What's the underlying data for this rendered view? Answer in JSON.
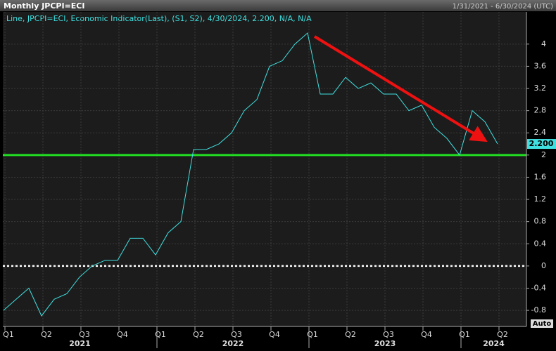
{
  "chart_data": {
    "type": "line",
    "title": "Monthly JPCPI=ECI",
    "date_range": "1/31/2021 - 6/30/2024 (UTC)",
    "legend_text": "Line, JPCPI=ECI, Economic Indicator(Last), (S1, S2), 4/30/2024, 2.200, N/A, N/A",
    "categories": [
      "Q1",
      null,
      null,
      "Q2",
      null,
      null,
      "Q3",
      null,
      null,
      "Q4",
      null,
      null,
      "Q1",
      null,
      null,
      "Q2",
      null,
      null,
      "Q3",
      null,
      null,
      "Q4",
      null,
      null,
      "Q1",
      null,
      null,
      "Q2",
      null,
      null,
      "Q3",
      null,
      null,
      "Q4",
      null,
      null,
      "Q1",
      null,
      null,
      "Q2"
    ],
    "years": [
      "2021",
      "2022",
      "2023",
      "2024"
    ],
    "series": [
      {
        "name": "JPCPI=ECI",
        "color": "#40e0e0",
        "values": [
          -0.8,
          -0.6,
          -0.4,
          -0.9,
          -0.6,
          -0.5,
          -0.2,
          0,
          0.1,
          0.1,
          0.5,
          0.5,
          0.2,
          0.6,
          0.8,
          2.1,
          2.1,
          2.2,
          2.4,
          2.8,
          3.0,
          3.6,
          3.7,
          4.0,
          4.2,
          3.1,
          3.1,
          3.4,
          3.2,
          3.3,
          3.1,
          3.1,
          2.8,
          2.9,
          2.5,
          2.3,
          2.0,
          2.8,
          2.6,
          2.2
        ]
      }
    ],
    "last_value_label": "2.200",
    "reference_lines": [
      {
        "value": 2,
        "color": "#22dd22"
      },
      {
        "value": 0,
        "color": "#ffffff"
      }
    ],
    "ylim": [
      -1.09,
      4.58
    ],
    "yticks": [
      -0.8,
      -0.4,
      0,
      0.4,
      0.8,
      1.2,
      1.6,
      2,
      2.4,
      2.8,
      3.2,
      3.6,
      4
    ],
    "grid": true,
    "scale_mode": "Auto"
  }
}
